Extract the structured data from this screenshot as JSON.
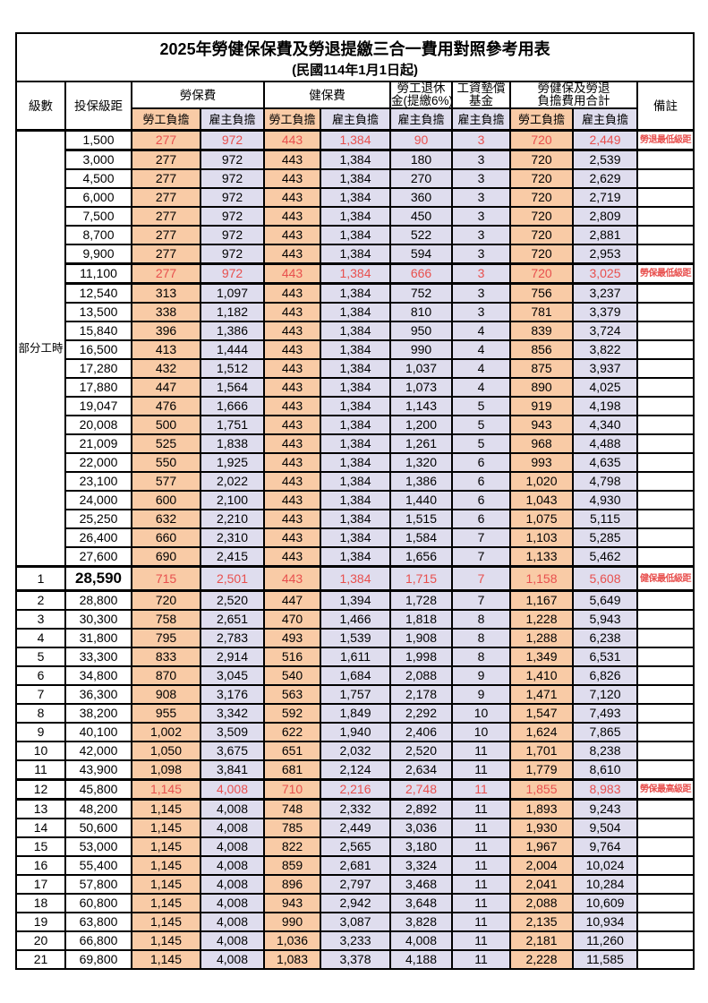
{
  "page": {
    "title": "2025年勞健保保費及勞退提繳三合一費用對照參考用表",
    "subtitle": "(民國114年1月1日起)"
  },
  "header": {
    "level": "級數",
    "bracket": "投保級距",
    "labor_fee": "勞保費",
    "health_fee": "健保費",
    "pension_line1": "勞工退休",
    "pension_line2": "金(提繳6%)",
    "wage_fund_line1": "工資墊償",
    "wage_fund_line2": "基金",
    "total_line1": "勞健保及勞退",
    "total_line2": "負擔費用合計",
    "remark": "備註",
    "employee": "勞工負擔",
    "employer": "雇主負擔",
    "part_time_label": "部分工時"
  },
  "colors": {
    "employee_column_bg": "#f9cba6",
    "employer_column_bg": "#dfddee",
    "highlight_text": "#e8504e",
    "border": "#000000"
  },
  "table": {
    "part_time_row_count": 23,
    "row_fields": [
      "level",
      "bracket",
      "labor_employee",
      "labor_employer",
      "health_employee",
      "health_employer",
      "pension_employer",
      "wage_fund_employer",
      "total_employee",
      "total_employer",
      "remark",
      "emphasized",
      "bracket_large"
    ],
    "rows": [
      [
        "",
        "1,500",
        "277",
        "972",
        "443",
        "1,384",
        "90",
        "3",
        "720",
        "2,449",
        "勞退最低級距",
        1,
        0
      ],
      [
        "",
        "3,000",
        "277",
        "972",
        "443",
        "1,384",
        "180",
        "3",
        "720",
        "2,539",
        "",
        0,
        0
      ],
      [
        "",
        "4,500",
        "277",
        "972",
        "443",
        "1,384",
        "270",
        "3",
        "720",
        "2,629",
        "",
        0,
        0
      ],
      [
        "",
        "6,000",
        "277",
        "972",
        "443",
        "1,384",
        "360",
        "3",
        "720",
        "2,719",
        "",
        0,
        0
      ],
      [
        "",
        "7,500",
        "277",
        "972",
        "443",
        "1,384",
        "450",
        "3",
        "720",
        "2,809",
        "",
        0,
        0
      ],
      [
        "",
        "8,700",
        "277",
        "972",
        "443",
        "1,384",
        "522",
        "3",
        "720",
        "2,881",
        "",
        0,
        0
      ],
      [
        "",
        "9,900",
        "277",
        "972",
        "443",
        "1,384",
        "594",
        "3",
        "720",
        "2,953",
        "",
        0,
        0
      ],
      [
        "",
        "11,100",
        "277",
        "972",
        "443",
        "1,384",
        "666",
        "3",
        "720",
        "3,025",
        "勞保最低級距",
        1,
        0
      ],
      [
        "",
        "12,540",
        "313",
        "1,097",
        "443",
        "1,384",
        "752",
        "3",
        "756",
        "3,237",
        "",
        0,
        0
      ],
      [
        "",
        "13,500",
        "338",
        "1,182",
        "443",
        "1,384",
        "810",
        "3",
        "781",
        "3,379",
        "",
        0,
        0
      ],
      [
        "",
        "15,840",
        "396",
        "1,386",
        "443",
        "1,384",
        "950",
        "4",
        "839",
        "3,724",
        "",
        0,
        0
      ],
      [
        "",
        "16,500",
        "413",
        "1,444",
        "443",
        "1,384",
        "990",
        "4",
        "856",
        "3,822",
        "",
        0,
        0
      ],
      [
        "",
        "17,280",
        "432",
        "1,512",
        "443",
        "1,384",
        "1,037",
        "4",
        "875",
        "3,937",
        "",
        0,
        0
      ],
      [
        "",
        "17,880",
        "447",
        "1,564",
        "443",
        "1,384",
        "1,073",
        "4",
        "890",
        "4,025",
        "",
        0,
        0
      ],
      [
        "",
        "19,047",
        "476",
        "1,666",
        "443",
        "1,384",
        "1,143",
        "5",
        "919",
        "4,198",
        "",
        0,
        0
      ],
      [
        "",
        "20,008",
        "500",
        "1,751",
        "443",
        "1,384",
        "1,200",
        "5",
        "943",
        "4,340",
        "",
        0,
        0
      ],
      [
        "",
        "21,009",
        "525",
        "1,838",
        "443",
        "1,384",
        "1,261",
        "5",
        "968",
        "4,488",
        "",
        0,
        0
      ],
      [
        "",
        "22,000",
        "550",
        "1,925",
        "443",
        "1,384",
        "1,320",
        "6",
        "993",
        "4,635",
        "",
        0,
        0
      ],
      [
        "",
        "23,100",
        "577",
        "2,022",
        "443",
        "1,384",
        "1,386",
        "6",
        "1,020",
        "4,798",
        "",
        0,
        0
      ],
      [
        "",
        "24,000",
        "600",
        "2,100",
        "443",
        "1,384",
        "1,440",
        "6",
        "1,043",
        "4,930",
        "",
        0,
        0
      ],
      [
        "",
        "25,250",
        "632",
        "2,210",
        "443",
        "1,384",
        "1,515",
        "6",
        "1,075",
        "5,115",
        "",
        0,
        0
      ],
      [
        "",
        "26,400",
        "660",
        "2,310",
        "443",
        "1,384",
        "1,584",
        "7",
        "1,103",
        "5,285",
        "",
        0,
        0
      ],
      [
        "",
        "27,600",
        "690",
        "2,415",
        "443",
        "1,384",
        "1,656",
        "7",
        "1,133",
        "5,462",
        "",
        0,
        0
      ],
      [
        "1",
        "28,590",
        "715",
        "2,501",
        "443",
        "1,384",
        "1,715",
        "7",
        "1,158",
        "5,608",
        "健保最低級距",
        1,
        1
      ],
      [
        "2",
        "28,800",
        "720",
        "2,520",
        "447",
        "1,394",
        "1,728",
        "7",
        "1,167",
        "5,649",
        "",
        0,
        0
      ],
      [
        "3",
        "30,300",
        "758",
        "2,651",
        "470",
        "1,466",
        "1,818",
        "8",
        "1,228",
        "5,943",
        "",
        0,
        0
      ],
      [
        "4",
        "31,800",
        "795",
        "2,783",
        "493",
        "1,539",
        "1,908",
        "8",
        "1,288",
        "6,238",
        "",
        0,
        0
      ],
      [
        "5",
        "33,300",
        "833",
        "2,914",
        "516",
        "1,611",
        "1,998",
        "8",
        "1,349",
        "6,531",
        "",
        0,
        0
      ],
      [
        "6",
        "34,800",
        "870",
        "3,045",
        "540",
        "1,684",
        "2,088",
        "9",
        "1,410",
        "6,826",
        "",
        0,
        0
      ],
      [
        "7",
        "36,300",
        "908",
        "3,176",
        "563",
        "1,757",
        "2,178",
        "9",
        "1,471",
        "7,120",
        "",
        0,
        0
      ],
      [
        "8",
        "38,200",
        "955",
        "3,342",
        "592",
        "1,849",
        "2,292",
        "10",
        "1,547",
        "7,493",
        "",
        0,
        0
      ],
      [
        "9",
        "40,100",
        "1,002",
        "3,509",
        "622",
        "1,940",
        "2,406",
        "10",
        "1,624",
        "7,865",
        "",
        0,
        0
      ],
      [
        "10",
        "42,000",
        "1,050",
        "3,675",
        "651",
        "2,032",
        "2,520",
        "11",
        "1,701",
        "8,238",
        "",
        0,
        0
      ],
      [
        "11",
        "43,900",
        "1,098",
        "3,841",
        "681",
        "2,124",
        "2,634",
        "11",
        "1,779",
        "8,610",
        "",
        0,
        0
      ],
      [
        "12",
        "45,800",
        "1,145",
        "4,008",
        "710",
        "2,216",
        "2,748",
        "11",
        "1,855",
        "8,983",
        "勞保最高級距",
        1,
        0
      ],
      [
        "13",
        "48,200",
        "1,145",
        "4,008",
        "748",
        "2,332",
        "2,892",
        "11",
        "1,893",
        "9,243",
        "",
        0,
        0
      ],
      [
        "14",
        "50,600",
        "1,145",
        "4,008",
        "785",
        "2,449",
        "3,036",
        "11",
        "1,930",
        "9,504",
        "",
        0,
        0
      ],
      [
        "15",
        "53,000",
        "1,145",
        "4,008",
        "822",
        "2,565",
        "3,180",
        "11",
        "1,967",
        "9,764",
        "",
        0,
        0
      ],
      [
        "16",
        "55,400",
        "1,145",
        "4,008",
        "859",
        "2,681",
        "3,324",
        "11",
        "2,004",
        "10,024",
        "",
        0,
        0
      ],
      [
        "17",
        "57,800",
        "1,145",
        "4,008",
        "896",
        "2,797",
        "3,468",
        "11",
        "2,041",
        "10,284",
        "",
        0,
        0
      ],
      [
        "18",
        "60,800",
        "1,145",
        "4,008",
        "943",
        "2,942",
        "3,648",
        "11",
        "2,088",
        "10,609",
        "",
        0,
        0
      ],
      [
        "19",
        "63,800",
        "1,145",
        "4,008",
        "990",
        "3,087",
        "3,828",
        "11",
        "2,135",
        "10,934",
        "",
        0,
        0
      ],
      [
        "20",
        "66,800",
        "1,145",
        "4,008",
        "1,036",
        "3,233",
        "4,008",
        "11",
        "2,181",
        "11,260",
        "",
        0,
        0
      ],
      [
        "21",
        "69,800",
        "1,145",
        "4,008",
        "1,083",
        "3,378",
        "4,188",
        "11",
        "2,228",
        "11,585",
        "",
        0,
        0
      ]
    ]
  }
}
